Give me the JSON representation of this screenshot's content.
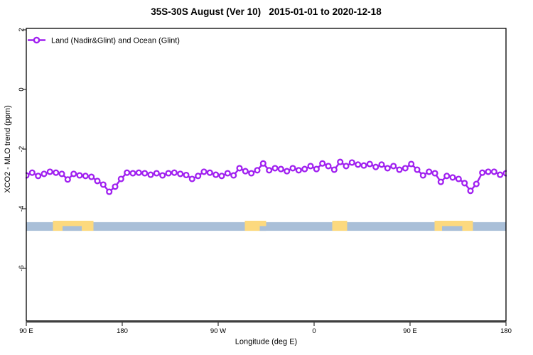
{
  "header": {
    "title": "35S-30S August (Ver 10)   2015-01-01 to 2020-12-18"
  },
  "legend": {
    "label": "Land (Nadir&Glint) and Ocean (Glint)"
  },
  "axes": {
    "x_label": "Longitude (deg E)",
    "y_label": "XCO2 - MLO trend (ppm)"
  },
  "colors": {
    "series": "#A020F0",
    "ocean": "#A9BFD8",
    "land": "#FCD97E",
    "axis_line": "#3f3f3f",
    "box": "#000000"
  },
  "chart_data": {
    "type": "line",
    "title": "35S-30S August (Ver 10)  2015-01-01 to 2020-12-18",
    "xlabel": "Longitude (deg E)",
    "ylabel": "XCO2 - MLO trend (ppm)",
    "xlim": [
      90,
      540
    ],
    "ylim": [
      -7.8,
      2.1
    ],
    "grid": false,
    "legend_position": "top-left",
    "x_ticks": [
      {
        "deg": 90,
        "label": "90 E"
      },
      {
        "deg": 180,
        "label": "180"
      },
      {
        "deg": 270,
        "label": "90 W"
      },
      {
        "deg": 360,
        "label": "0"
      },
      {
        "deg": 450,
        "label": "90 E"
      },
      {
        "deg": 540,
        "label": "180"
      }
    ],
    "y_ticks": [
      {
        "v": 2,
        "label": "2"
      },
      {
        "v": 0,
        "label": "0"
      },
      {
        "v": -2,
        "label": "-2"
      },
      {
        "v": -4,
        "label": "-4"
      },
      {
        "v": -6,
        "label": "-6"
      }
    ],
    "series": [
      {
        "name": "Land (Nadir&Glint) and Ocean (Glint)",
        "color": "#A020F0",
        "marker": "open-circle",
        "x_start_deg": 90,
        "x_end_deg": 540,
        "values": [
          -2.88,
          -2.79,
          -2.9,
          -2.83,
          -2.76,
          -2.79,
          -2.83,
          -3.02,
          -2.83,
          -2.88,
          -2.9,
          -2.93,
          -3.07,
          -3.19,
          -3.43,
          -3.26,
          -3.0,
          -2.79,
          -2.81,
          -2.79,
          -2.81,
          -2.86,
          -2.81,
          -2.88,
          -2.81,
          -2.79,
          -2.83,
          -2.87,
          -3.0,
          -2.9,
          -2.76,
          -2.79,
          -2.86,
          -2.9,
          -2.81,
          -2.88,
          -2.64,
          -2.74,
          -2.81,
          -2.71,
          -2.48,
          -2.71,
          -2.64,
          -2.67,
          -2.74,
          -2.64,
          -2.71,
          -2.67,
          -2.57,
          -2.67,
          -2.48,
          -2.57,
          -2.69,
          -2.43,
          -2.57,
          -2.45,
          -2.52,
          -2.55,
          -2.5,
          -2.6,
          -2.52,
          -2.64,
          -2.57,
          -2.69,
          -2.64,
          -2.5,
          -2.69,
          -2.88,
          -2.76,
          -2.81,
          -3.1,
          -2.9,
          -2.95,
          -3.0,
          -3.14,
          -3.4,
          -3.17,
          -2.79,
          -2.76,
          -2.76,
          -2.86,
          -2.81
        ]
      }
    ],
    "map_strip": {
      "description": "land-ocean mask strip",
      "y_top_ppm": -4.45,
      "y_bottom_ppm": -4.74,
      "ocean_color": "#A9BFD8",
      "land_color": "#FCD97E",
      "ocean_range_deg": [
        90,
        540
      ],
      "land_segments_deg": [
        [
          115,
          153
        ],
        [
          295,
          315
        ],
        [
          377,
          391
        ],
        [
          473,
          509
        ]
      ],
      "water_notches_deg": [
        [
          124,
          142
        ],
        [
          309,
          315
        ],
        [
          480,
          499
        ]
      ]
    }
  }
}
